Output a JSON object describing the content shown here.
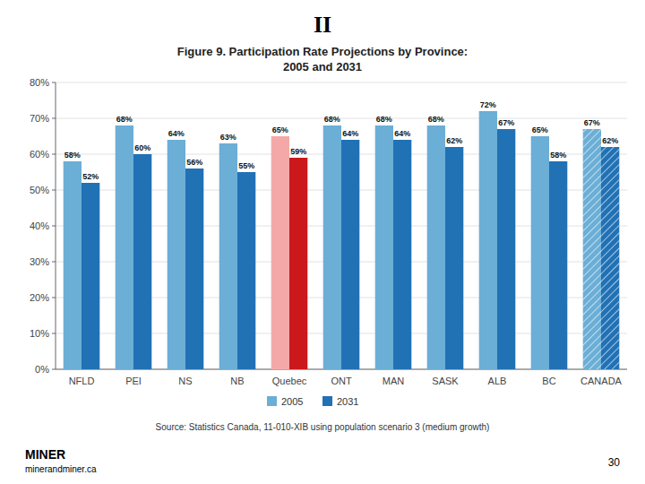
{
  "chart_data": {
    "type": "bar",
    "title": "Figure 9. Participation Rate Projections by Province:",
    "subtitle": "2005 and 2031",
    "categories": [
      "NFLD",
      "PEI",
      "NS",
      "NB",
      "Quebec",
      "ONT",
      "MAN",
      "SASK",
      "ALB",
      "BC",
      "CANADA"
    ],
    "series": [
      {
        "name": "2005",
        "color": "#6baed6",
        "colors": [
          "#6baed6",
          "#6baed6",
          "#6baed6",
          "#6baed6",
          "#f4a9a8",
          "#6baed6",
          "#6baed6",
          "#6baed6",
          "#6baed6",
          "#6baed6",
          "#6baed6"
        ],
        "values": [
          58,
          68,
          64,
          63,
          65,
          68,
          68,
          68,
          72,
          65,
          67
        ],
        "value_labels": [
          "58%",
          "68%",
          "64%",
          "63%",
          "65%",
          "68%",
          "68%",
          "68%",
          "72%",
          "65%",
          "67%"
        ]
      },
      {
        "name": "2031",
        "color": "#2171b5",
        "colors": [
          "#2171b5",
          "#2171b5",
          "#2171b5",
          "#2171b5",
          "#cb181d",
          "#2171b5",
          "#2171b5",
          "#2171b5",
          "#2171b5",
          "#2171b5",
          "#2171b5"
        ],
        "values": [
          52,
          60,
          56,
          55,
          59,
          64,
          64,
          62,
          67,
          58,
          62
        ],
        "value_labels": [
          "52%",
          "60%",
          "56%",
          "55%",
          "59%",
          "64%",
          "64%",
          "62%",
          "67%",
          "58%",
          "62%"
        ]
      }
    ],
    "ylim": [
      0,
      80
    ],
    "yticks": [
      {
        "value": 0,
        "label": "0%"
      },
      {
        "value": 10,
        "label": "10%"
      },
      {
        "value": 20,
        "label": "20%"
      },
      {
        "value": 30,
        "label": "30%"
      },
      {
        "value": 40,
        "label": "40%"
      },
      {
        "value": 50,
        "label": "50%"
      },
      {
        "value": 60,
        "label": "60%"
      },
      {
        "value": 70,
        "label": "70%"
      },
      {
        "value": 80,
        "label": "80%"
      }
    ],
    "grid": true,
    "legend": "bottom",
    "data_labels": true,
    "annotations": [
      "II",
      "Source: Statistics Canada, 11-010-XIB using population scenario 3 (medium growth)",
      "MINER",
      "minerandminer.ca",
      "30"
    ]
  }
}
